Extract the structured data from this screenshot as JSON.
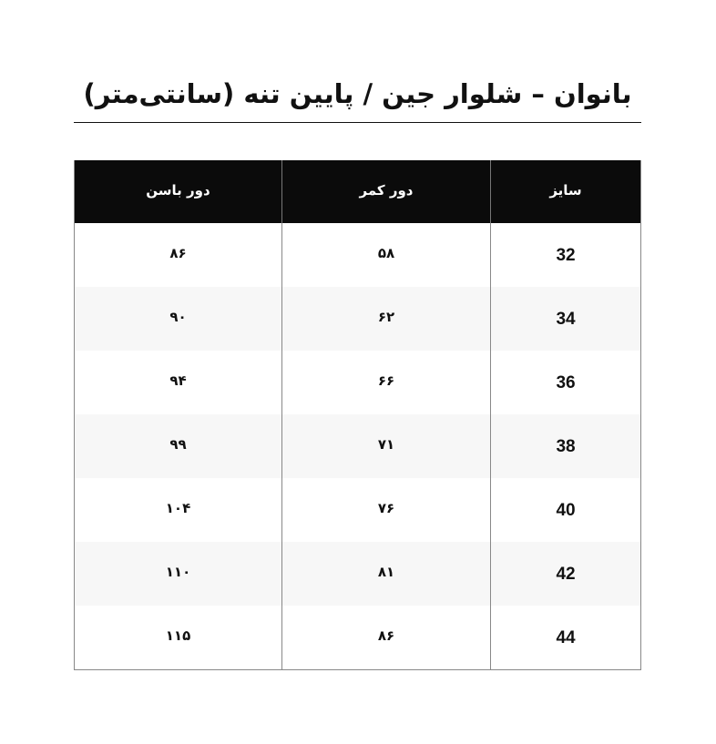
{
  "title": "بانوان – شلوار جین / پایین تنه (سانتی‌متر)",
  "table": {
    "headers": [
      "سایز",
      "دور کمر",
      "دور باسن"
    ],
    "rows": [
      {
        "size": "32",
        "waist": "۵۸",
        "hip": "۸۶"
      },
      {
        "size": "34",
        "waist": "۶۲",
        "hip": "۹۰"
      },
      {
        "size": "36",
        "waist": "۶۶",
        "hip": "۹۴"
      },
      {
        "size": "38",
        "waist": "۷۱",
        "hip": "۹۹"
      },
      {
        "size": "40",
        "waist": "۷۶",
        "hip": "۱۰۴"
      },
      {
        "size": "42",
        "waist": "۸۱",
        "hip": "۱۱۰"
      },
      {
        "size": "44",
        "waist": "۸۶",
        "hip": "۱۱۵"
      }
    ]
  }
}
